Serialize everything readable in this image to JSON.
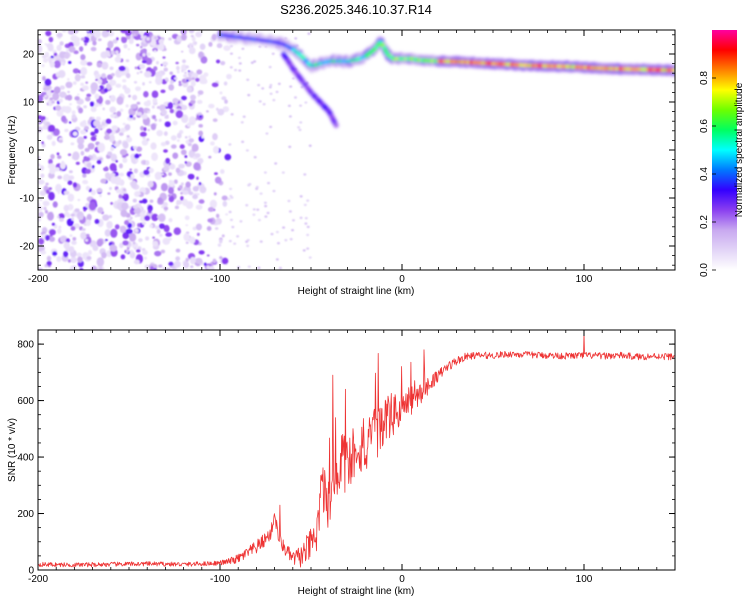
{
  "title": "S236.2025.346.10.37.R14",
  "colorbar": {
    "label": "Normalized spectral amplitude",
    "ticks": [
      0.0,
      0.2,
      0.4,
      0.6,
      0.8
    ],
    "tick_labels": [
      "0.0",
      "0.2",
      "0.4",
      "0.6",
      "0.8"
    ],
    "range": [
      0,
      1
    ],
    "stops": [
      "#ffffff",
      "#e2d4f7",
      "#c8a8f0",
      "#8a3ff0",
      "#3300ff",
      "#0078ff",
      "#00ffff",
      "#00ff60",
      "#6dff00",
      "#ffff00",
      "#ff8000",
      "#ff0000",
      "#ff00a0"
    ]
  },
  "chart_data": [
    {
      "type": "heatmap",
      "name": "spectrogram",
      "title": "S236.2025.346.10.37.R14",
      "xlabel": "Height of straight line (km)",
      "ylabel": "Frequency (Hz)",
      "xlim": [
        -200,
        150
      ],
      "ylim": [
        -25,
        25
      ],
      "xticks": [
        -200,
        -100,
        0,
        100
      ],
      "xtick_labels": [
        "-200",
        "-100",
        "0",
        "100"
      ],
      "yticks": [
        -20,
        -10,
        0,
        10,
        20
      ],
      "ytick_labels": [
        "-20",
        "-10",
        "0",
        "10",
        "20"
      ],
      "ridge": {
        "x": [
          -100,
          -90,
          -80,
          -70,
          -65,
          -60,
          -55,
          -50,
          -45,
          -40,
          -35,
          -30,
          -25,
          -20,
          -15,
          -12,
          -10,
          -8,
          -5,
          0,
          5,
          10,
          20,
          30,
          40,
          50,
          60,
          70,
          80,
          90,
          100,
          110,
          120,
          130,
          140,
          150
        ],
        "y": [
          24,
          23.5,
          23,
          22.5,
          22,
          21,
          19.5,
          17.5,
          18,
          18.5,
          18.5,
          18.5,
          18.8,
          19.5,
          21,
          22.5,
          21.5,
          20,
          19,
          19,
          19,
          18.7,
          18.5,
          18.4,
          18.2,
          18,
          17.8,
          17.6,
          17.5,
          17.4,
          17.2,
          17.0,
          16.9,
          16.8,
          16.7,
          16.6
        ],
        "peak_amplitude": 0.95
      },
      "secondary_branch": {
        "x": [
          -65,
          -60,
          -55,
          -50,
          -45,
          -40,
          -36
        ],
        "y": [
          20,
          17,
          14.5,
          12,
          10,
          8,
          5
        ]
      },
      "noise_region": {
        "x_range": [
          -200,
          -95
        ],
        "y_range": [
          -25,
          25
        ],
        "amplitude_range": [
          0.05,
          0.3
        ]
      }
    },
    {
      "type": "line",
      "name": "snr",
      "xlabel": "Height of straight line (km)",
      "ylabel": "SNR (10 * v/v)",
      "xlim": [
        -200,
        150
      ],
      "ylim": [
        0,
        850
      ],
      "xticks": [
        -200,
        -100,
        0,
        100
      ],
      "xtick_labels": [
        "-200",
        "-100",
        "0",
        "100"
      ],
      "yticks": [
        0,
        200,
        400,
        600,
        800
      ],
      "ytick_labels": [
        "0",
        "200",
        "400",
        "600",
        "800"
      ],
      "color": "#ee3333",
      "x": [
        -200,
        -180,
        -160,
        -140,
        -120,
        -110,
        -100,
        -95,
        -90,
        -85,
        -80,
        -75,
        -72,
        -70,
        -68,
        -65,
        -60,
        -55,
        -50,
        -47,
        -45,
        -43,
        -40,
        -37,
        -35,
        -33,
        -30,
        -25,
        -20,
        -15,
        -10,
        -5,
        0,
        5,
        10,
        15,
        20,
        25,
        30,
        35,
        40,
        50,
        60,
        70,
        80,
        90,
        100,
        110,
        120,
        130,
        140,
        150
      ],
      "y": [
        20,
        18,
        20,
        22,
        20,
        22,
        25,
        30,
        40,
        60,
        80,
        110,
        130,
        200,
        120,
        80,
        40,
        50,
        90,
        120,
        200,
        300,
        250,
        350,
        280,
        400,
        360,
        450,
        420,
        480,
        520,
        550,
        570,
        600,
        620,
        660,
        690,
        720,
        740,
        755,
        760,
        760,
        765,
        762,
        760,
        758,
        760,
        758,
        760,
        755,
        758,
        755
      ],
      "noise_amplitude": {
        "x": [
          -200,
          -100,
          -80,
          -60,
          -50,
          -40,
          -30,
          -20,
          -10,
          0,
          10,
          20,
          40,
          150
        ],
        "amp": [
          8,
          8,
          25,
          25,
          60,
          120,
          110,
          100,
          90,
          70,
          40,
          20,
          12,
          12
        ]
      },
      "spikes": [
        {
          "x": -38,
          "y": 690
        },
        {
          "x": -31,
          "y": 640
        },
        {
          "x": 12,
          "y": 780
        },
        {
          "x": 100,
          "y": 840
        },
        {
          "x": -67,
          "y": 230
        }
      ]
    }
  ]
}
